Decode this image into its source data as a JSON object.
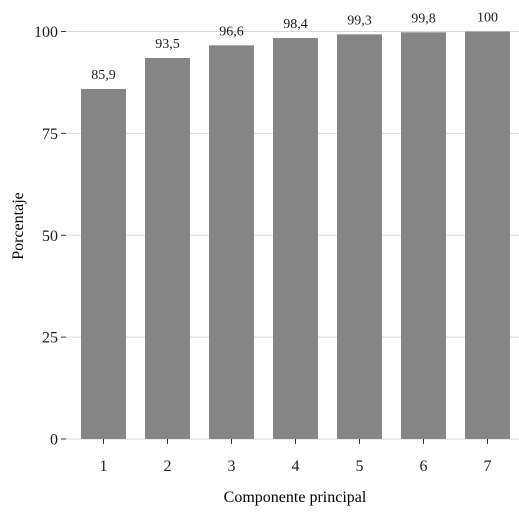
{
  "chart_data": {
    "type": "bar",
    "categories": [
      "1",
      "2",
      "3",
      "4",
      "5",
      "6",
      "7"
    ],
    "values": [
      85.9,
      93.5,
      96.6,
      98.4,
      99.3,
      99.8,
      100
    ],
    "data_labels": [
      "85,9",
      "93,5",
      "96,6",
      "98,4",
      "99,3",
      "99,8",
      "100"
    ],
    "xlabel": "Componente principal",
    "ylabel": "Porcentaje",
    "ylim": [
      0,
      100
    ],
    "yticks": [
      0,
      25,
      50,
      75,
      100
    ],
    "ytick_labels": [
      "0",
      "25",
      "50",
      "75",
      "100"
    ],
    "grid": true,
    "colors": {
      "bar": "#858585",
      "grid": "#d9d9d9",
      "axis_text": "#1a1a1a"
    }
  }
}
